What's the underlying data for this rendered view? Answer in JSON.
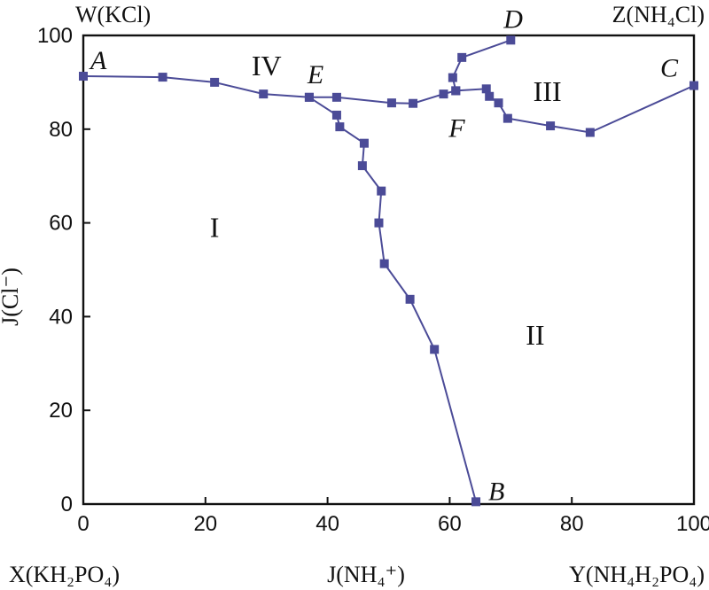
{
  "chart_data": {
    "type": "line",
    "x_ticks": [
      "0",
      "20",
      "40",
      "60",
      "80",
      "100"
    ],
    "y_ticks": [
      "0",
      "20",
      "40",
      "60",
      "80",
      "100"
    ],
    "xlim": [
      0,
      100
    ],
    "ylim": [
      0,
      100
    ],
    "ylabel": "J(Cl⁻)",
    "xlabel": "J(NH₄⁺)",
    "corner_labels": {
      "bottom_left": "X(KH₂PO₄)",
      "bottom_right": "Y(NH₄H₂PO₄)",
      "top_left": "W(KCl)",
      "top_right": "Z(NH₄Cl)"
    },
    "point_labels": [
      {
        "label": "A",
        "x": 0,
        "y": 91.3
      },
      {
        "label": "B",
        "x": 64.3,
        "y": 0.5
      },
      {
        "label": "C",
        "x": 100,
        "y": 89.3
      },
      {
        "label": "D",
        "x": 70,
        "y": 99
      },
      {
        "label": "E",
        "x": 37,
        "y": 86.8
      },
      {
        "label": "F",
        "x": 61,
        "y": 88.2
      }
    ],
    "region_labels": [
      {
        "label": "I",
        "x": 21.5,
        "y": 57
      },
      {
        "label": "II",
        "x": 74,
        "y": 34
      },
      {
        "label": "III",
        "x": 76,
        "y": 86
      },
      {
        "label": "IV",
        "x": 30,
        "y": 91.5
      }
    ],
    "series": [
      {
        "points": [
          [
            0,
            91.3
          ],
          [
            13,
            91.1
          ],
          [
            21.5,
            90.0
          ],
          [
            29.5,
            87.5
          ],
          [
            37,
            86.8
          ],
          [
            41.5,
            86.8
          ],
          [
            50.5,
            85.6
          ],
          [
            54,
            85.5
          ],
          [
            59,
            87.5
          ],
          [
            61,
            88.2
          ],
          [
            66,
            88.6
          ],
          [
            66.5,
            87
          ],
          [
            68,
            85.6
          ],
          [
            69.5,
            82.3
          ],
          [
            76.5,
            80.7
          ],
          [
            83,
            79.3
          ],
          [
            100,
            89.3
          ]
        ]
      },
      {
        "points": [
          [
            37,
            86.8
          ],
          [
            41.5,
            83.0
          ],
          [
            42,
            80.5
          ],
          [
            46,
            77.0
          ],
          [
            45.7,
            72.2
          ],
          [
            48.8,
            66.8
          ],
          [
            48.4,
            60.0
          ],
          [
            49.3,
            51.3
          ],
          [
            53.5,
            43.7
          ],
          [
            57.5,
            33.0
          ],
          [
            64.3,
            0.5
          ]
        ]
      },
      {
        "points": [
          [
            61,
            88.2
          ],
          [
            60.5,
            91.0
          ],
          [
            62,
            95.3
          ],
          [
            70,
            99
          ]
        ]
      }
    ],
    "color": "#4b4b97"
  }
}
